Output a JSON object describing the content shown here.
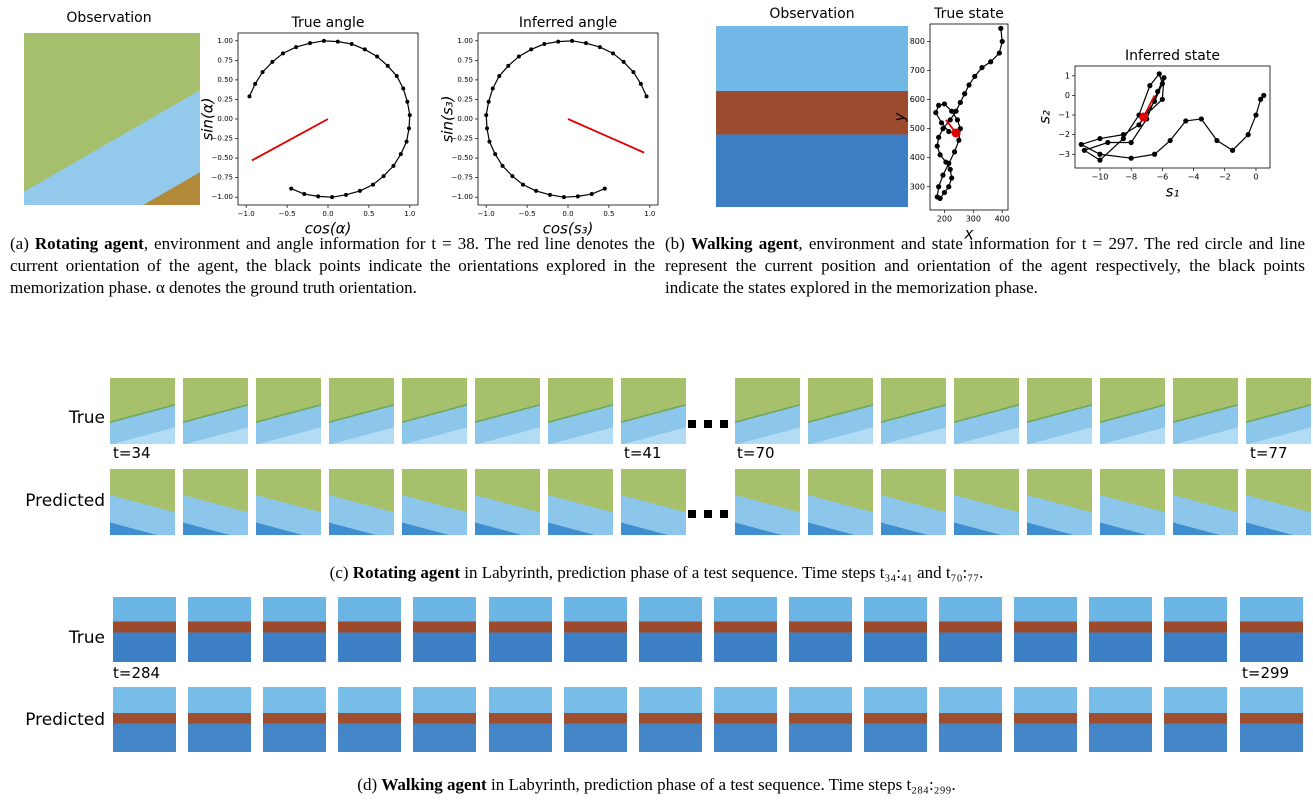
{
  "panel_a": {
    "observation_title": "Observation",
    "caption": {
      "label": "(a)",
      "bold": "Rotating agent",
      "text": ", environment and angle information for t = 38. The red line denotes the current orientation of the agent, the black points indicate the orientations explored in the memorization phase. α denotes the ground truth orientation."
    }
  },
  "panel_b": {
    "observation_title": "Observation",
    "caption": {
      "label": "(b)",
      "bold": "Walking agent",
      "text": ", environment and state information for t = 297. The red circle and line represent the current position and orientation of the agent respectively, the black points indicate the states explored in the memorization phase."
    }
  },
  "chart_data": [
    {
      "type": "line",
      "title": "True angle",
      "x_label": "cos(α)",
      "y_label": "sin(α)",
      "xlim": [
        -1.1,
        1.1
      ],
      "ylim": [
        -1.1,
        1.1
      ],
      "xticks": [
        {
          "value": -1,
          "label": "−1.0"
        },
        {
          "value": -0.5,
          "label": "−0.5"
        },
        {
          "value": 0,
          "label": "0.0"
        },
        0.5,
        {
          "value": 1,
          "label": "1.0"
        }
      ],
      "yticks": [
        {
          "value": -1,
          "label": "−1.00"
        },
        {
          "value": -0.75,
          "label": "−0.75"
        },
        {
          "value": -0.5,
          "label": "−0.50"
        },
        {
          "value": -0.25,
          "label": "−0.25"
        },
        {
          "value": 0,
          "label": "0.00"
        },
        0.25,
        {
          "value": 0.5,
          "label": "0.50"
        },
        0.75,
        {
          "value": 1,
          "label": "1.00"
        }
      ],
      "color": "#000000",
      "x": [
        -0.45,
        -0.29,
        -0.12,
        0.05,
        0.22,
        0.39,
        0.55,
        0.68,
        0.8,
        0.89,
        0.96,
        0.99,
        1,
        0.97,
        0.92,
        0.84,
        0.73,
        0.6,
        0.45,
        0.29,
        0.12,
        -0.05,
        -0.22,
        -0.39,
        -0.55,
        -0.68,
        -0.8,
        -0.89,
        -0.96
      ],
      "values": [
        -0.89,
        -0.96,
        -0.99,
        -1,
        -0.97,
        -0.92,
        -0.84,
        -0.73,
        -0.6,
        -0.45,
        -0.29,
        -0.12,
        0.05,
        0.22,
        0.39,
        0.55,
        0.68,
        0.8,
        0.89,
        0.96,
        0.99,
        1,
        0.97,
        0.92,
        0.84,
        0.73,
        0.6,
        0.45,
        0.29
      ],
      "overlay": {
        "color": "#e00000",
        "x": [
          0,
          -0.93
        ],
        "values": [
          0,
          -0.53
        ]
      }
    },
    {
      "type": "line",
      "title": "Inferred angle",
      "x_label": "cos(s₃)",
      "y_label": "sin(s₃)",
      "xlim": [
        -1.1,
        1.1
      ],
      "ylim": [
        -1.1,
        1.1
      ],
      "xticks": [
        {
          "value": -1,
          "label": "−1.0"
        },
        {
          "value": -0.5,
          "label": "−0.5"
        },
        {
          "value": 0,
          "label": "0.0"
        },
        0.5,
        {
          "value": 1,
          "label": "1.0"
        }
      ],
      "yticks": [
        {
          "value": -1,
          "label": "−1.00"
        },
        {
          "value": -0.75,
          "label": "−0.75"
        },
        {
          "value": -0.5,
          "label": "−0.50"
        },
        {
          "value": -0.25,
          "label": "−0.25"
        },
        {
          "value": 0,
          "label": "0.00"
        },
        0.25,
        {
          "value": 0.5,
          "label": "0.50"
        },
        0.75,
        {
          "value": 1,
          "label": "1.00"
        }
      ],
      "color": "#000000",
      "x": [
        0.45,
        0.29,
        0.12,
        -0.05,
        -0.22,
        -0.39,
        -0.55,
        -0.68,
        -0.8,
        -0.89,
        -0.96,
        -0.99,
        -1,
        -0.97,
        -0.92,
        -0.84,
        -0.73,
        -0.6,
        -0.45,
        -0.29,
        -0.12,
        0.05,
        0.22,
        0.39,
        0.55,
        0.68,
        0.8,
        0.89,
        0.96
      ],
      "values": [
        -0.89,
        -0.96,
        -0.99,
        -1,
        -0.97,
        -0.92,
        -0.84,
        -0.73,
        -0.6,
        -0.45,
        -0.29,
        -0.12,
        0.05,
        0.22,
        0.39,
        0.55,
        0.68,
        0.8,
        0.89,
        0.96,
        0.99,
        1,
        0.97,
        0.92,
        0.84,
        0.73,
        0.6,
        0.45,
        0.29
      ],
      "overlay": {
        "color": "#e00000",
        "x": [
          0,
          0.93
        ],
        "values": [
          0,
          -0.43
        ]
      }
    },
    {
      "type": "line",
      "title": "True state",
      "x_label": "x",
      "y_label": "y",
      "xlim": [
        150,
        420
      ],
      "ylim": [
        220,
        860
      ],
      "xticks": [
        200,
        300,
        400
      ],
      "yticks": [
        300,
        400,
        500,
        600,
        700,
        800
      ],
      "color": "#000000",
      "x": [
        395,
        400,
        390,
        360,
        330,
        305,
        285,
        270,
        255,
        240,
        220,
        195,
        180,
        175,
        185,
        205,
        220,
        225,
        215,
        200,
        185,
        175,
        180,
        195,
        215,
        235,
        250,
        255,
        245,
        225,
        200,
        180,
        170,
        190,
        215,
        240
      ],
      "values": [
        845,
        800,
        760,
        730,
        710,
        680,
        650,
        620,
        590,
        560,
        530,
        500,
        470,
        440,
        410,
        385,
        360,
        330,
        300,
        280,
        260,
        265,
        300,
        340,
        380,
        420,
        460,
        500,
        530,
        560,
        585,
        580,
        555,
        520,
        490,
        485
      ],
      "overlay": {
        "color": "#e00000",
        "x": [
          205,
          240
        ],
        "values": [
          530,
          485
        ]
      },
      "point": {
        "color": "#e00000",
        "x": 240,
        "value": 485
      }
    },
    {
      "type": "line",
      "title": "Inferred state",
      "x_label": "s₁",
      "y_label": "s₂",
      "xlim": [
        -11.6,
        0.9
      ],
      "ylim": [
        -3.7,
        1.5
      ],
      "xticks": [
        {
          "value": -10,
          "label": "−10"
        },
        {
          "value": -8,
          "label": "−8"
        },
        {
          "value": -6,
          "label": "−6"
        },
        {
          "value": -4,
          "label": "−4"
        },
        {
          "value": -2,
          "label": "−2"
        },
        0
      ],
      "yticks": [
        {
          "value": -3,
          "label": "−3"
        },
        {
          "value": -2,
          "label": "−2"
        },
        {
          "value": -1,
          "label": "−1"
        },
        0,
        1
      ],
      "color": "#000000",
      "x": [
        0.5,
        0.3,
        0,
        -0.5,
        -1.5,
        -2.5,
        -3.5,
        -4.5,
        -5.5,
        -6.5,
        -8,
        -10,
        -11.2,
        -10,
        -8.5,
        -7.5,
        -6.5,
        -6,
        -6.2,
        -6.8,
        -7.5,
        -8.5,
        -10,
        -11,
        -9.5,
        -8,
        -7,
        -6.3,
        -5.9,
        -6,
        -7.2
      ],
      "values": [
        0,
        -0.2,
        -1,
        -2,
        -2.8,
        -2.3,
        -1.2,
        -1.3,
        -2.3,
        -3,
        -3.2,
        -3,
        -2.5,
        -2.2,
        -2,
        -1.5,
        -0.3,
        0.6,
        1.1,
        0.5,
        -1,
        -2.2,
        -3.3,
        -2.8,
        -2.4,
        -2.4,
        -1.2,
        0.2,
        0.9,
        -0.2,
        -1.1
      ],
      "overlay": {
        "color": "#e00000",
        "x": [
          -7.2,
          -6.5
        ],
        "values": [
          -1.1,
          0
        ]
      },
      "point": {
        "color": "#e00000",
        "x": -7.2,
        "value": -1.1
      }
    }
  ],
  "panel_c": {
    "row_labels": [
      "True",
      "Predicted"
    ],
    "time_labels": [
      "t=34",
      "t=41",
      "t=70",
      "t=77"
    ],
    "caption": {
      "label": "(c)",
      "bold": "Rotating agent",
      "text": " in Labyrinth, prediction phase of a test sequence. Time steps t₃₄:₄₁ and t₇₀:₇₇."
    }
  },
  "panel_d": {
    "row_labels": [
      "True",
      "Predicted"
    ],
    "time_labels": [
      "t=284",
      "t=299"
    ],
    "caption": {
      "label": "(d)",
      "bold": "Walking agent",
      "text": " in Labyrinth, prediction phase of a test sequence. Time steps t₂₈₄:₂₉₉."
    }
  }
}
